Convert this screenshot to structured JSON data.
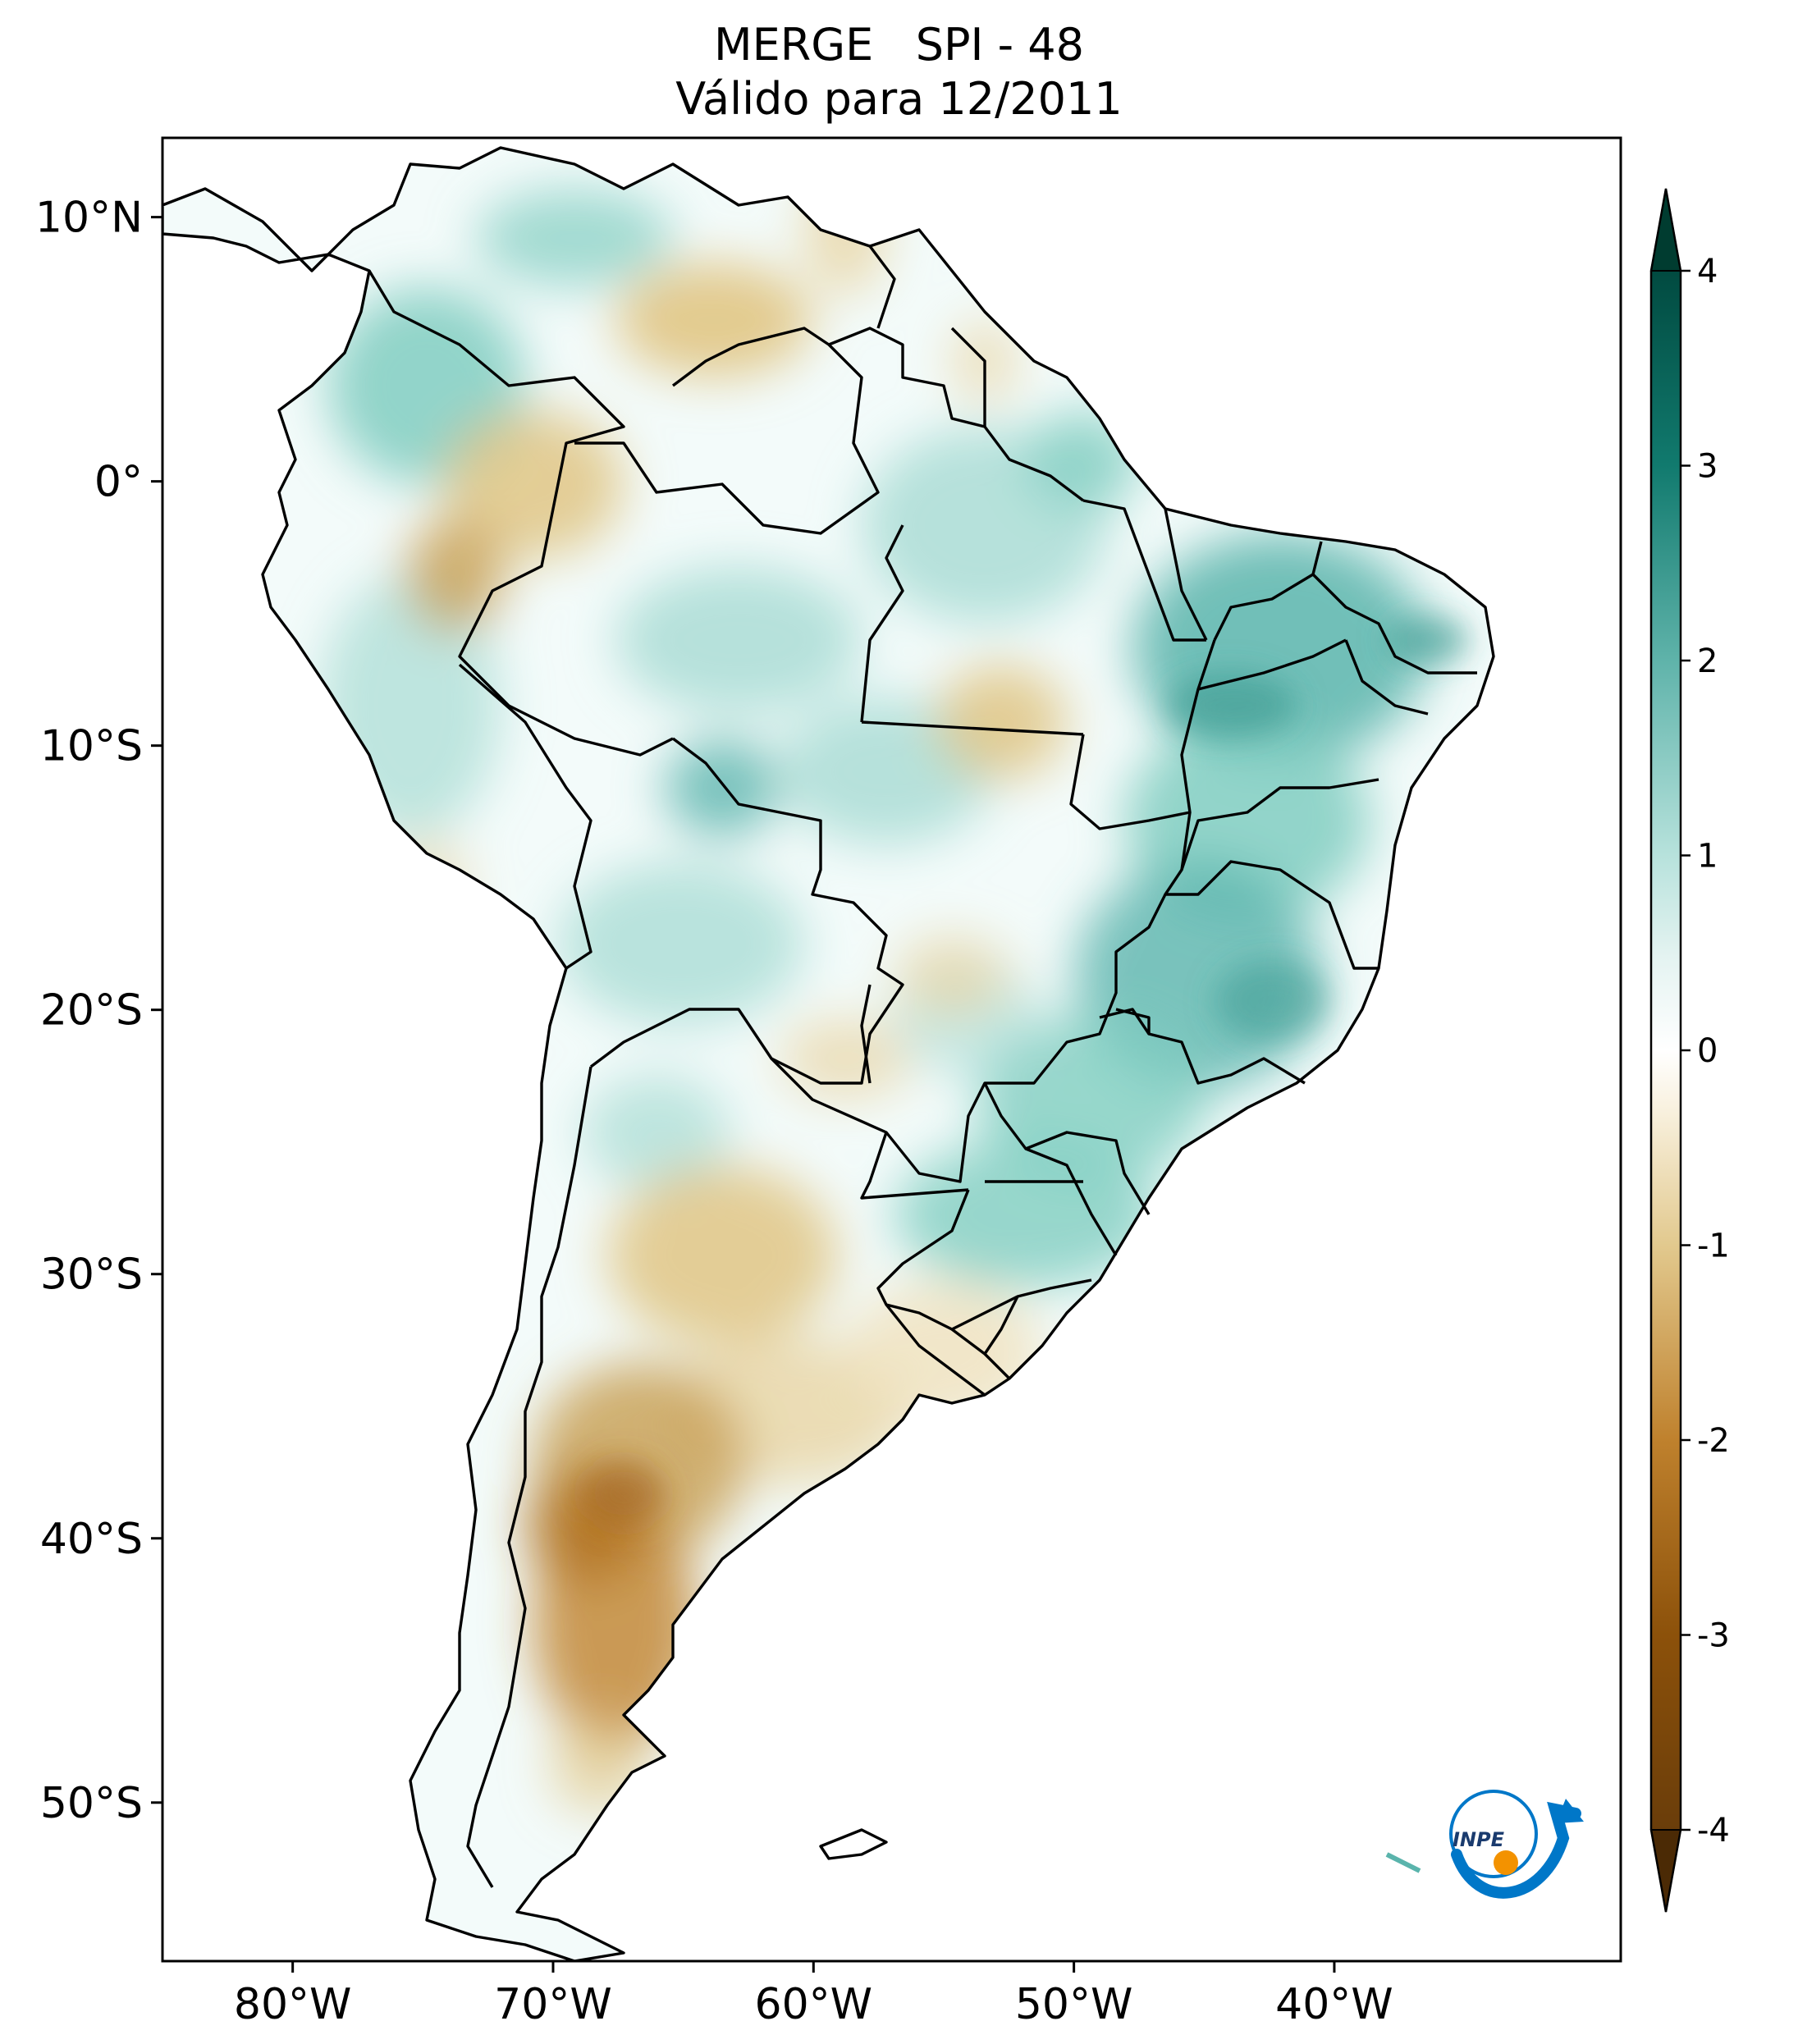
{
  "title": {
    "line1": "MERGE   SPI - 48",
    "line2": "Válido para 12/2011"
  },
  "map": {
    "region": "South America",
    "lon_range": [
      -85,
      -29
    ],
    "lat_range": [
      -56,
      13
    ],
    "x_ticks": [
      {
        "value": -80,
        "label": "80°W"
      },
      {
        "value": -70,
        "label": "70°W"
      },
      {
        "value": -60,
        "label": "60°W"
      },
      {
        "value": -50,
        "label": "50°W"
      },
      {
        "value": -40,
        "label": "40°W"
      }
    ],
    "y_ticks": [
      {
        "value": 10,
        "label": "10°N"
      },
      {
        "value": 0,
        "label": "0°"
      },
      {
        "value": -10,
        "label": "10°S"
      },
      {
        "value": -20,
        "label": "20°S"
      },
      {
        "value": -30,
        "label": "30°S"
      },
      {
        "value": -40,
        "label": "40°S"
      },
      {
        "value": -50,
        "label": "50°S"
      }
    ]
  },
  "colorbar": {
    "cmap": "BrBG",
    "range": [
      -4,
      4
    ],
    "extend": "both",
    "ticks": [
      {
        "value": 4,
        "label": "4"
      },
      {
        "value": 3,
        "label": "3"
      },
      {
        "value": 2,
        "label": "2"
      },
      {
        "value": 1,
        "label": "1"
      },
      {
        "value": 0,
        "label": "0"
      },
      {
        "value": -1,
        "label": "-1"
      },
      {
        "value": -2,
        "label": "-2"
      },
      {
        "value": -3,
        "label": "-3"
      },
      {
        "value": -4,
        "label": "-4"
      }
    ],
    "colors": [
      "#543005",
      "#8c510a",
      "#bf812d",
      "#dfc27d",
      "#f6e8c3",
      "#ffffff",
      "#c7eae5",
      "#80cdc1",
      "#35978f",
      "#01665e",
      "#003c30"
    ]
  },
  "logo": {
    "text": "INPE"
  },
  "colors": {
    "wet": "#5ab4ac",
    "dry": "#bf812d",
    "neutral": "#ffffff",
    "border": "#000000"
  }
}
